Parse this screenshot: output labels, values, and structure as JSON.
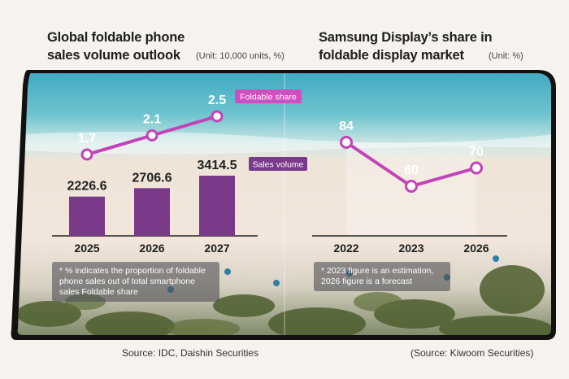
{
  "left_chart": {
    "title_line1": "Global foldable phone",
    "title_line2": "sales volume outlook",
    "unit": "(Unit: 10,000 units, %)",
    "note_line1": "* % indicates the proportion of foldable",
    "note_line2": "phone sales out of total smartphone",
    "note_line3": "sales Foldable share",
    "source": "Source: IDC, Daishin Securities"
  },
  "right_chart": {
    "title_line1": "Samsung Display’s share in",
    "title_line2": "foldable display market",
    "unit": "(Unit: %)",
    "note_line1": "* 2023 figure is an estimation,",
    "note_line2": "2026 figure is a forecast",
    "source": "(Source: Kiwoom Securities)"
  },
  "colors": {
    "bar": "#7a3a8a",
    "line": "#c443b8",
    "badge_share": "#cf4fc0",
    "badge_volume": "#7a3a8a"
  },
  "chart_data": [
    {
      "type": "bar",
      "title": "Global foldable phone sales volume outlook",
      "categories": [
        "2025",
        "2026",
        "2027"
      ],
      "series": [
        {
          "name": "Sales volume",
          "type": "bar",
          "values": [
            2226.6,
            2706.6,
            3414.5
          ],
          "labels": [
            "2226.6",
            "2706.6",
            "3414.5"
          ]
        },
        {
          "name": "Foldable share",
          "type": "line",
          "values": [
            1.7,
            2.1,
            2.5
          ],
          "labels": [
            "1.7",
            "2.1",
            "2.5"
          ]
        }
      ],
      "legend": [
        "Foldable share",
        "Sales volume"
      ],
      "unit": "10,000 units, %"
    },
    {
      "type": "line",
      "title": "Samsung Display’s share in foldable display market",
      "categories": [
        "2022",
        "2023",
        "2026"
      ],
      "series": [
        {
          "name": "Share",
          "values": [
            84,
            60,
            70
          ],
          "labels": [
            "84",
            "60",
            "70"
          ]
        }
      ],
      "unit": "%"
    }
  ]
}
